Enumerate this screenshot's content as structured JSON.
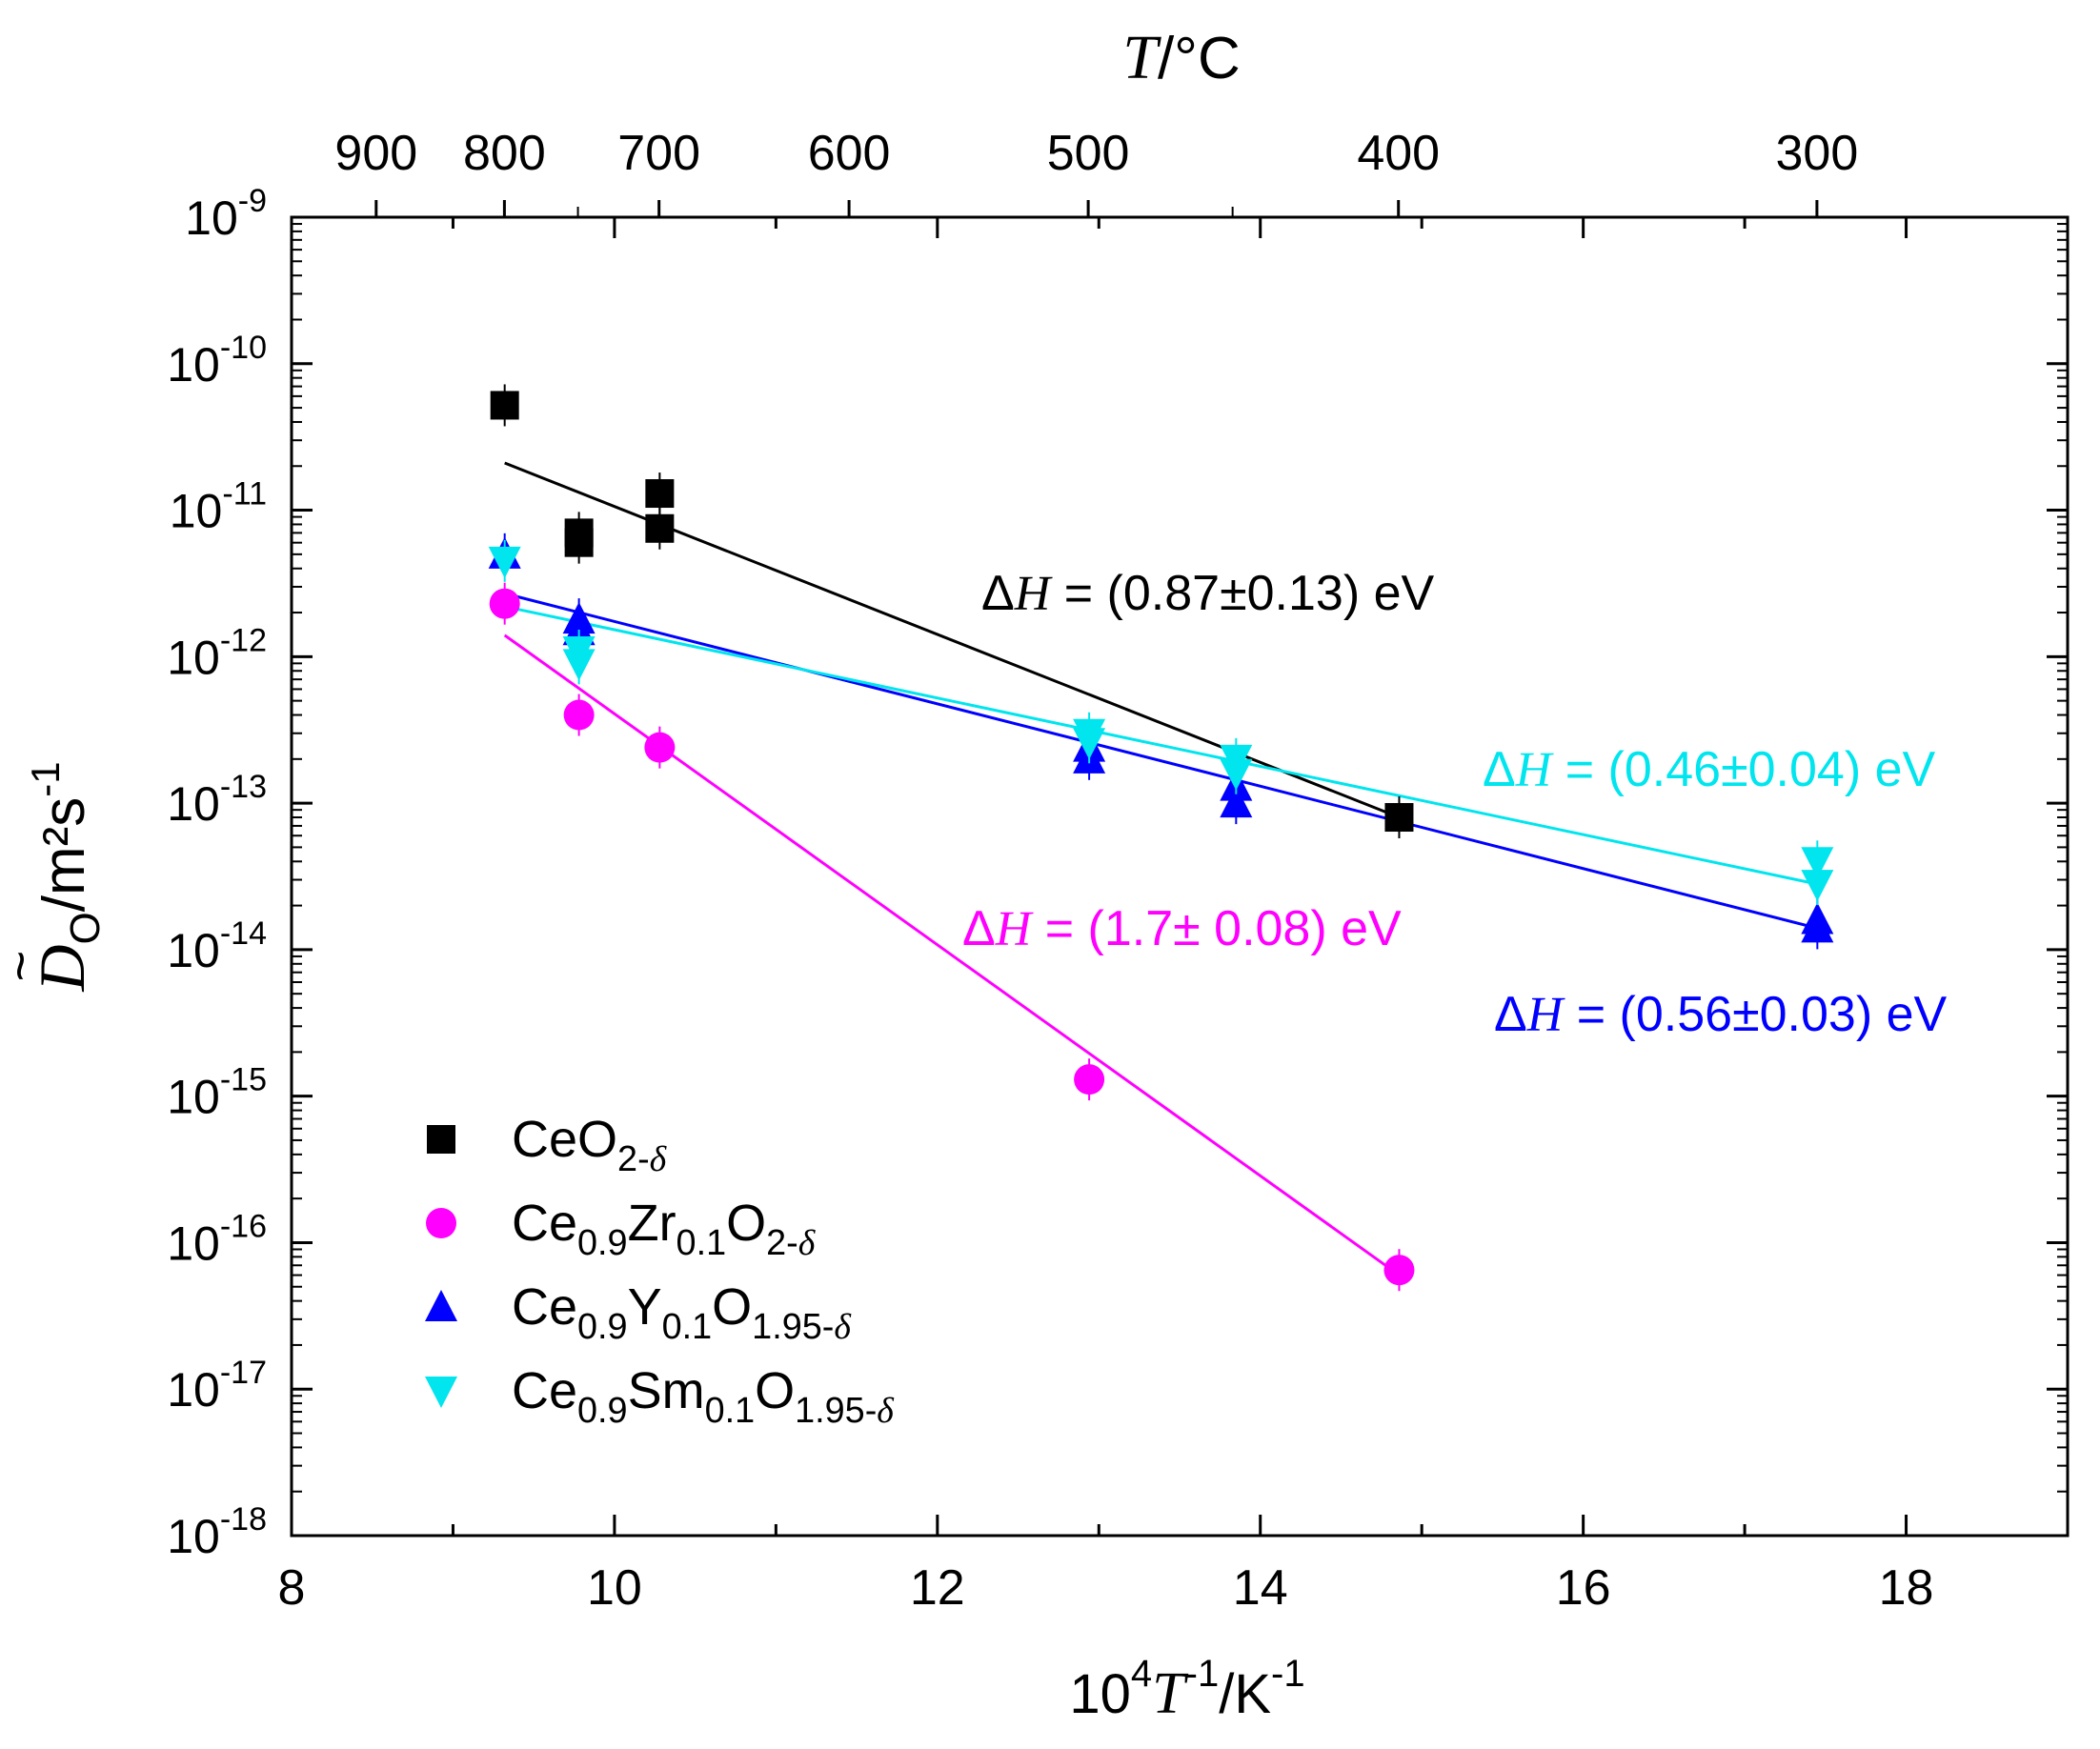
{
  "chart_data": {
    "type": "scatter",
    "x_axis": {
      "label_parts": [
        "10",
        "4",
        "T",
        "-1",
        "/K",
        "-1"
      ],
      "range": [
        8,
        19
      ],
      "ticks": [
        "8",
        "10",
        "12",
        "14",
        "16",
        "18"
      ]
    },
    "y_axis": {
      "label_parts": [
        "D",
        "O",
        "/m²s",
        "-1"
      ],
      "scale": "log",
      "range": [
        1e-18,
        1e-09
      ],
      "ticks": [
        {
          "base": "10",
          "exp": "-18"
        },
        {
          "base": "10",
          "exp": "-17"
        },
        {
          "base": "10",
          "exp": "-16"
        },
        {
          "base": "10",
          "exp": "-15"
        },
        {
          "base": "10",
          "exp": "-14"
        },
        {
          "base": "10",
          "exp": "-13"
        },
        {
          "base": "10",
          "exp": "-12"
        },
        {
          "base": "10",
          "exp": "-11"
        },
        {
          "base": "10",
          "exp": "-10"
        },
        {
          "base": "10",
          "exp": "-9"
        }
      ]
    },
    "top_axis": {
      "label_parts": [
        "T",
        "/°C"
      ],
      "ticks": [
        {
          "label": "900",
          "celsius": 900
        },
        {
          "label": "800",
          "celsius": 800
        },
        {
          "label": "700",
          "celsius": 700
        },
        {
          "label": "600",
          "celsius": 600
        },
        {
          "label": "500",
          "celsius": 500
        },
        {
          "label": "400",
          "celsius": 400
        },
        {
          "label": "300",
          "celsius": 300
        }
      ],
      "minor_celsius": [
        750,
        450
      ]
    },
    "grid": false,
    "legend_position": "bottom-left",
    "series": [
      {
        "name_parts": [
          {
            "t": "CeO",
            "s": "n"
          },
          {
            "t": "2-",
            "s": "sub"
          },
          {
            "t": "δ",
            "s": "sub-i"
          }
        ],
        "color": "#000000",
        "marker": "square",
        "points": [
          {
            "x": 9.32,
            "y": 5.2e-11
          },
          {
            "x": 9.78,
            "y": 7e-12
          },
          {
            "x": 9.78,
            "y": 6e-12
          },
          {
            "x": 10.28,
            "y": 1.3e-11
          },
          {
            "x": 10.28,
            "y": 7.5e-12
          },
          {
            "x": 14.86,
            "y": 8e-14
          }
        ],
        "fit": {
          "x": [
            9.32,
            14.86
          ],
          "y": [
            2.1e-11,
            8e-14
          ]
        },
        "annotation": {
          "parts": [
            {
              "t": "Δ",
              "s": "n"
            },
            {
              "t": "H",
              "s": "i"
            },
            {
              "t": " = (0.87±0.13) eV",
              "s": "n"
            }
          ]
        }
      },
      {
        "name_parts": [
          {
            "t": "Ce",
            "s": "n"
          },
          {
            "t": "0.9",
            "s": "sub"
          },
          {
            "t": "Zr",
            "s": "n"
          },
          {
            "t": "0.1",
            "s": "sub"
          },
          {
            "t": "O",
            "s": "n"
          },
          {
            "t": "2-",
            "s": "sub"
          },
          {
            "t": "δ",
            "s": "sub-i"
          }
        ],
        "color": "#ff00ff",
        "marker": "circle",
        "points": [
          {
            "x": 9.32,
            "y": 2.3e-12
          },
          {
            "x": 9.78,
            "y": 4e-13
          },
          {
            "x": 10.28,
            "y": 2.4e-13
          },
          {
            "x": 12.94,
            "y": 1.3e-15
          },
          {
            "x": 14.86,
            "y": 6.5e-17
          }
        ],
        "fit": {
          "x": [
            9.32,
            14.86
          ],
          "y": [
            1.4e-12,
            6e-17
          ]
        },
        "annotation": {
          "parts": [
            {
              "t": "Δ",
              "s": "n"
            },
            {
              "t": "H",
              "s": "i"
            },
            {
              "t": " = (1.7± 0.08) eV",
              "s": "n"
            }
          ]
        }
      },
      {
        "name_parts": [
          {
            "t": "Ce",
            "s": "n"
          },
          {
            "t": "0.9",
            "s": "sub"
          },
          {
            "t": "Y",
            "s": "n"
          },
          {
            "t": "0.1",
            "s": "sub"
          },
          {
            "t": "O",
            "s": "n"
          },
          {
            "t": "1.95-",
            "s": "sub"
          },
          {
            "t": "δ",
            "s": "sub-i"
          }
        ],
        "color": "#0000ff",
        "marker": "triangle-up",
        "points": [
          {
            "x": 9.32,
            "y": 5e-12
          },
          {
            "x": 9.78,
            "y": 1.8e-12
          },
          {
            "x": 9.78,
            "y": 1.5e-12
          },
          {
            "x": 12.94,
            "y": 2.4e-13
          },
          {
            "x": 12.94,
            "y": 2e-13
          },
          {
            "x": 13.85,
            "y": 1.3e-13
          },
          {
            "x": 13.85,
            "y": 1e-13
          },
          {
            "x": 17.45,
            "y": 1.6e-14
          },
          {
            "x": 17.45,
            "y": 1.4e-14
          }
        ],
        "fit": {
          "x": [
            9.32,
            17.45
          ],
          "y": [
            2.7e-12,
            1.4e-14
          ]
        },
        "annotation": {
          "parts": [
            {
              "t": "Δ",
              "s": "n"
            },
            {
              "t": "H",
              "s": "i"
            },
            {
              "t": " = (0.56±0.03) eV",
              "s": "n"
            }
          ]
        }
      },
      {
        "name_parts": [
          {
            "t": "Ce",
            "s": "n"
          },
          {
            "t": "0.9",
            "s": "sub"
          },
          {
            "t": "Sm",
            "s": "n"
          },
          {
            "t": "0.1",
            "s": "sub"
          },
          {
            "t": "O",
            "s": "n"
          },
          {
            "t": "1.95-",
            "s": "sub"
          },
          {
            "t": "δ",
            "s": "sub-i"
          }
        ],
        "color": "#00e5ee",
        "marker": "triangle-down",
        "points": [
          {
            "x": 9.32,
            "y": 4.5e-12
          },
          {
            "x": 9.78,
            "y": 1.1e-12
          },
          {
            "x": 9.78,
            "y": 9e-13
          },
          {
            "x": 12.94,
            "y": 3e-13
          },
          {
            "x": 12.94,
            "y": 2.6e-13
          },
          {
            "x": 13.85,
            "y": 2e-13
          },
          {
            "x": 13.85,
            "y": 1.6e-13
          },
          {
            "x": 17.45,
            "y": 4e-14
          },
          {
            "x": 17.45,
            "y": 2.8e-14
          }
        ],
        "fit": {
          "x": [
            9.32,
            17.45
          ],
          "y": [
            2.2e-12,
            2.8e-14
          ]
        },
        "annotation": {
          "parts": [
            {
              "t": "Δ",
              "s": "n"
            },
            {
              "t": "H",
              "s": "i"
            },
            {
              "t": " = (0.46±0.04) eV",
              "s": "n"
            }
          ]
        }
      }
    ]
  }
}
